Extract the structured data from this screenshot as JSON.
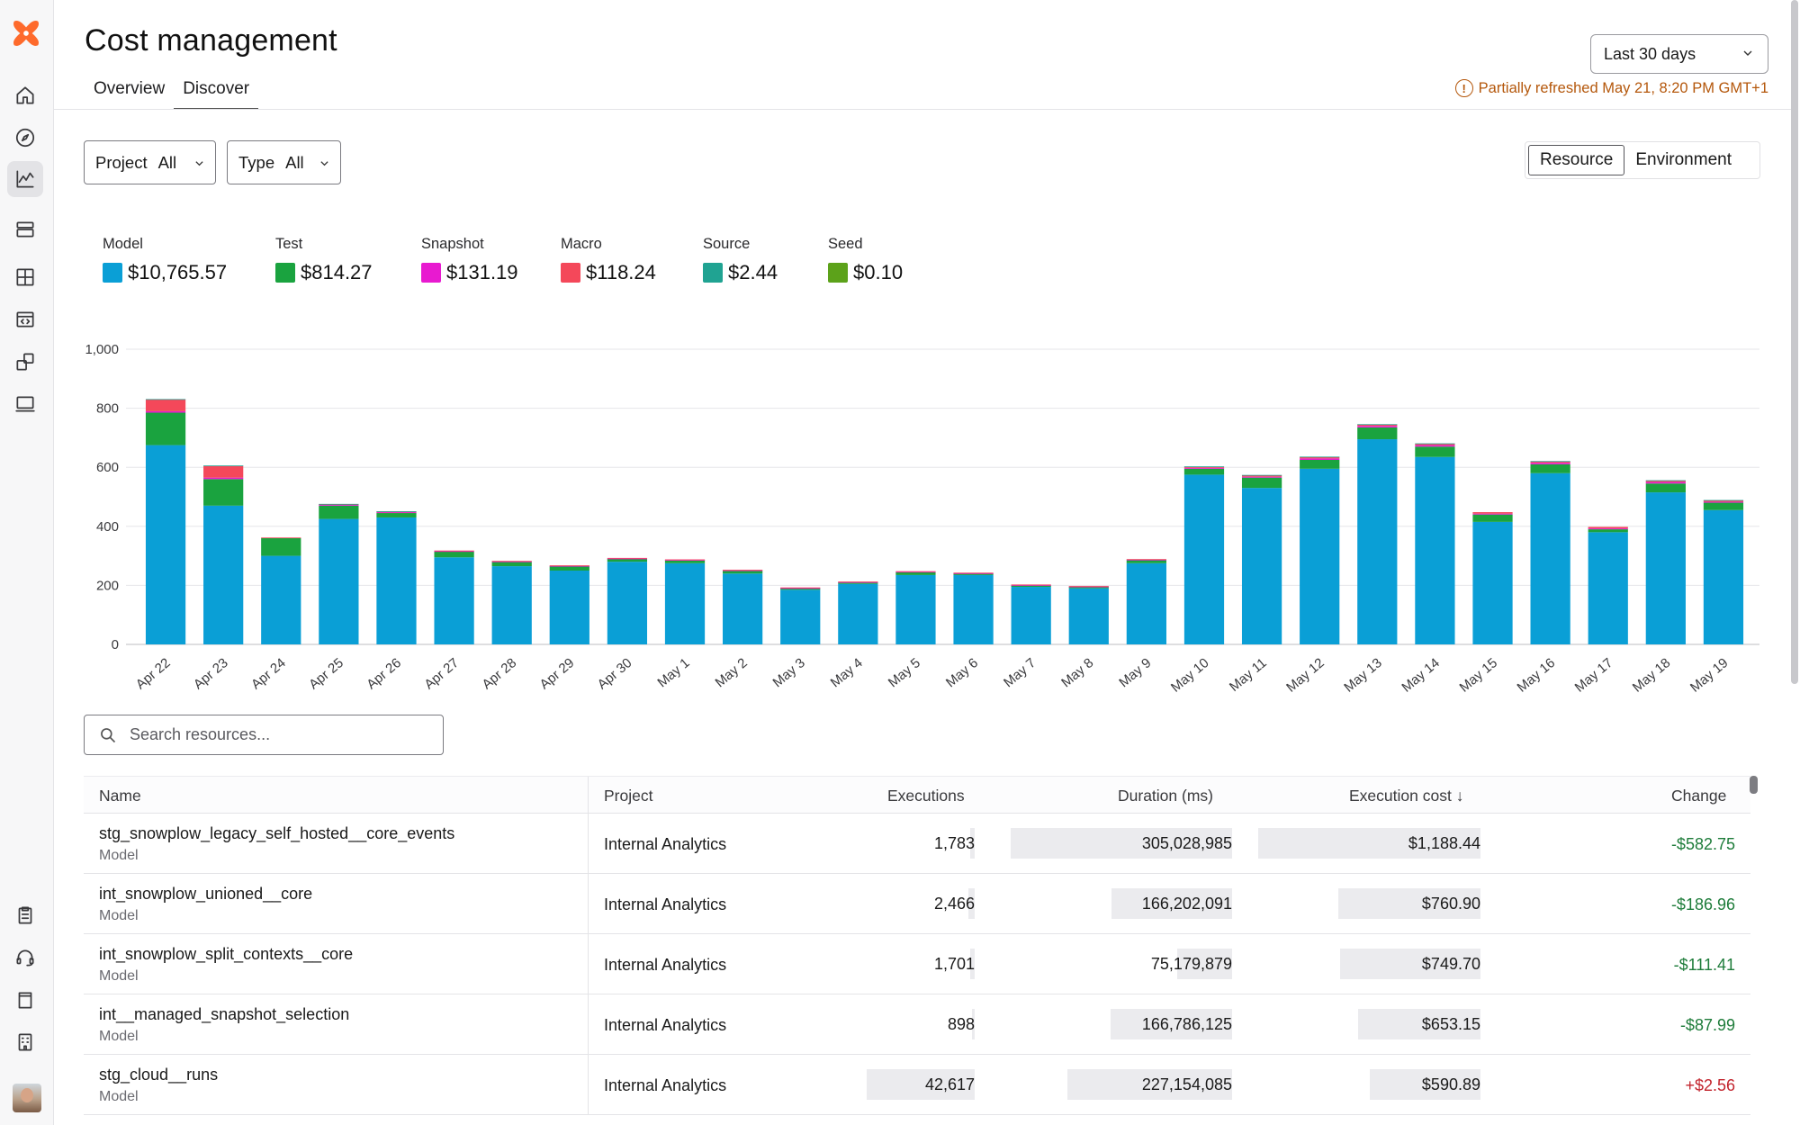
{
  "page": {
    "title": "Cost management"
  },
  "tabs": [
    {
      "label": "Overview"
    },
    {
      "label": "Discover"
    }
  ],
  "date_range": {
    "value": "Last 30 days"
  },
  "refresh_status": {
    "text": "Partially refreshed May 21, 8:20 PM GMT+1"
  },
  "filters": {
    "project": {
      "label": "Project",
      "value": "All"
    },
    "type": {
      "label": "Type",
      "value": "All"
    }
  },
  "view_toggle": {
    "resource": "Resource",
    "environment": "Environment"
  },
  "legend": [
    {
      "name": "Model",
      "value": "$10,765.57",
      "color": "#0a9fd6"
    },
    {
      "name": "Test",
      "value": "$814.27",
      "color": "#1aa33f"
    },
    {
      "name": "Snapshot",
      "value": "$131.19",
      "color": "#e81ad0"
    },
    {
      "name": "Macro",
      "value": "$118.24",
      "color": "#f4485a"
    },
    {
      "name": "Source",
      "value": "$2.44",
      "color": "#20a392"
    },
    {
      "name": "Seed",
      "value": "$0.10",
      "color": "#5ca21a"
    }
  ],
  "chart_data": {
    "type": "bar",
    "stacked": true,
    "title": "",
    "xlabel": "",
    "ylabel": "",
    "ylim": [
      0,
      1000
    ],
    "yticks": [
      "0",
      "200",
      "400",
      "600",
      "800",
      "1,000"
    ],
    "categories": [
      "Apr 22",
      "Apr 23",
      "Apr 24",
      "Apr 25",
      "Apr 26",
      "Apr 27",
      "Apr 28",
      "Apr 29",
      "Apr 30",
      "May 1",
      "May 2",
      "May 3",
      "May 4",
      "May 5",
      "May 6",
      "May 7",
      "May 8",
      "May 9",
      "May 10",
      "May 11",
      "May 12",
      "May 13",
      "May 14",
      "May 15",
      "May 16",
      "May 17",
      "May 18",
      "May 19"
    ],
    "series": [
      {
        "name": "Model",
        "color": "#0a9fd6",
        "values": [
          675,
          470,
          300,
          425,
          430,
          295,
          265,
          250,
          280,
          275,
          240,
          185,
          205,
          235,
          235,
          195,
          190,
          275,
          575,
          530,
          595,
          695,
          635,
          415,
          580,
          380,
          515,
          455
        ]
      },
      {
        "name": "Test",
        "color": "#1aa33f",
        "values": [
          110,
          90,
          60,
          45,
          15,
          20,
          15,
          15,
          10,
          10,
          10,
          5,
          5,
          10,
          5,
          5,
          5,
          10,
          20,
          35,
          30,
          40,
          35,
          25,
          30,
          10,
          30,
          25
        ]
      },
      {
        "name": "Snapshot",
        "color": "#e81ad0",
        "values": [
          5,
          5,
          0,
          3,
          3,
          1,
          1,
          1,
          1,
          1,
          1,
          1,
          1,
          1,
          1,
          1,
          1,
          2,
          3,
          3,
          5,
          5,
          5,
          3,
          5,
          3,
          5,
          3
        ]
      },
      {
        "name": "Macro",
        "color": "#f4485a",
        "values": [
          40,
          40,
          2,
          2,
          2,
          2,
          2,
          2,
          2,
          2,
          2,
          2,
          2,
          2,
          2,
          2,
          2,
          2,
          4,
          5,
          5,
          5,
          5,
          5,
          5,
          5,
          5,
          5
        ]
      },
      {
        "name": "Source",
        "color": "#20a392",
        "values": [
          1,
          1,
          0,
          1,
          1,
          0,
          0,
          0,
          0,
          0,
          0,
          0,
          0,
          0,
          0,
          0,
          0,
          0,
          1,
          1,
          1,
          1,
          1,
          0,
          1,
          0,
          1,
          1
        ]
      },
      {
        "name": "Seed",
        "color": "#5ca21a",
        "values": [
          0,
          0,
          0,
          0,
          0,
          0,
          0,
          0,
          0,
          0,
          0,
          0,
          0,
          0,
          0,
          0,
          0,
          0,
          0,
          0,
          0,
          0,
          0,
          0,
          0,
          0,
          0,
          0
        ]
      }
    ]
  },
  "search": {
    "placeholder": "Search resources..."
  },
  "table": {
    "headers": {
      "name": "Name",
      "project": "Project",
      "executions": "Executions",
      "duration": "Duration (ms)",
      "cost": "Execution cost",
      "sort_arrow": "↓",
      "change": "Change"
    },
    "rows": [
      {
        "name": "stg_snowplow_legacy_self_hosted__core_events",
        "type": "Model",
        "project": "Internal Analytics",
        "executions": "1,783",
        "exec_frac": 0.04,
        "duration": "305,028,985",
        "dur_frac": 1.0,
        "cost": "$1,188.44",
        "cost_frac": 1.0,
        "change": "-$582.75",
        "change_sign": "neg"
      },
      {
        "name": "int_snowplow_unioned__core",
        "type": "Model",
        "project": "Internal Analytics",
        "executions": "2,466",
        "exec_frac": 0.058,
        "duration": "166,202,091",
        "dur_frac": 0.545,
        "cost": "$760.90",
        "cost_frac": 0.64,
        "change": "-$186.96",
        "change_sign": "neg"
      },
      {
        "name": "int_snowplow_split_contexts__core",
        "type": "Model",
        "project": "Internal Analytics",
        "executions": "1,701",
        "exec_frac": 0.04,
        "duration": "75,179,879",
        "dur_frac": 0.246,
        "cost": "$749.70",
        "cost_frac": 0.63,
        "change": "-$111.41",
        "change_sign": "neg"
      },
      {
        "name": "int__managed_snapshot_selection",
        "type": "Model",
        "project": "Internal Analytics",
        "executions": "898",
        "exec_frac": 0.021,
        "duration": "166,786,125",
        "dur_frac": 0.547,
        "cost": "$653.15",
        "cost_frac": 0.55,
        "change": "-$87.99",
        "change_sign": "neg"
      },
      {
        "name": "stg_cloud__runs",
        "type": "Model",
        "project": "Internal Analytics",
        "executions": "42,617",
        "exec_frac": 1.0,
        "duration": "227,154,085",
        "dur_frac": 0.745,
        "cost": "$590.89",
        "cost_frac": 0.497,
        "change": "+$2.56",
        "change_sign": "pos"
      }
    ]
  }
}
